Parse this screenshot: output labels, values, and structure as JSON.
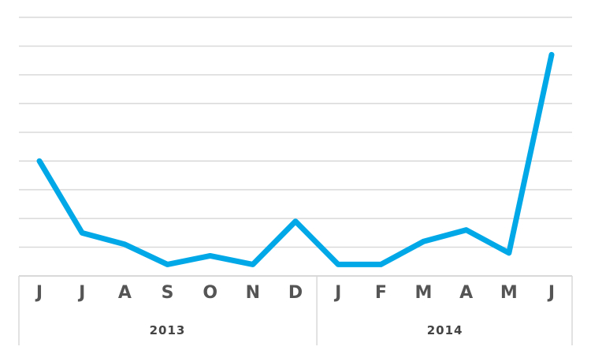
{
  "chart_data": {
    "type": "line",
    "categories": [
      "J",
      "J",
      "A",
      "S",
      "O",
      "N",
      "D",
      "J",
      "F",
      "M",
      "A",
      "M",
      "J"
    ],
    "groups": [
      {
        "label": "2013",
        "count": 7
      },
      {
        "label": "2014",
        "count": 6
      }
    ],
    "series": [
      {
        "values": [
          4.0,
          1.5,
          1.1,
          0.4,
          0.7,
          0.4,
          1.9,
          0.4,
          0.4,
          1.2,
          1.6,
          0.8,
          7.7
        ]
      }
    ],
    "ylim": [
      0,
      9
    ],
    "grid": true,
    "line_color": "#00a8e8",
    "grid_color": "#d9d9d9"
  }
}
